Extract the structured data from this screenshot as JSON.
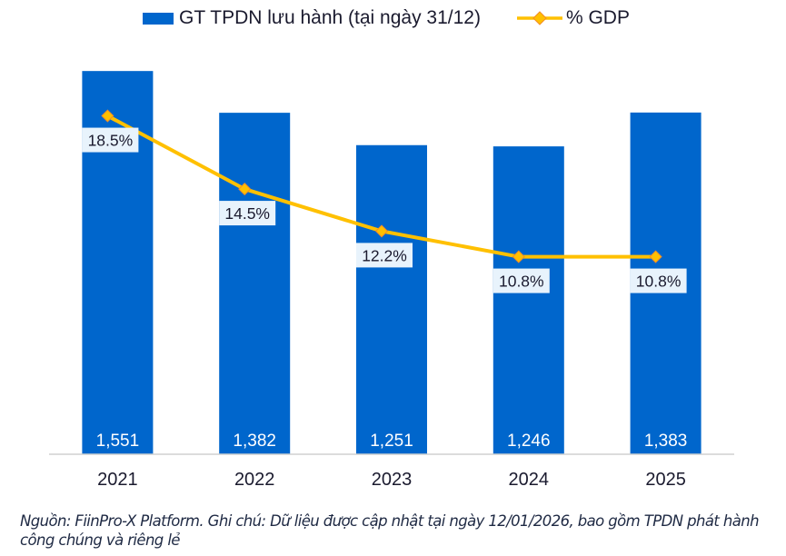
{
  "chart_data": {
    "type": "bar",
    "categories": [
      "2021",
      "2022",
      "2023",
      "2024",
      "2025"
    ],
    "series": [
      {
        "name": "GT TPDN lưu hành (tại ngày 31/12)",
        "kind": "bar",
        "values": [
          1551,
          1382,
          1251,
          1246,
          1383
        ],
        "labels": [
          "1,551",
          "1,382",
          "1,251",
          "1,246",
          "1,383"
        ],
        "color": "#0066CC"
      },
      {
        "name": "% GDP",
        "kind": "line",
        "values": [
          18.5,
          14.5,
          12.2,
          10.8,
          10.8
        ],
        "labels": [
          "18.5%",
          "14.5%",
          "12.2%",
          "10.8%",
          "10.8%"
        ],
        "color": "#FFC000",
        "marker_color": "#FFC000",
        "marker_edge": "#F28C28"
      }
    ],
    "title": "",
    "xlabel": "",
    "ylabel": "",
    "ylim": [
      0,
      1600
    ],
    "y2lim": [
      0,
      22
    ],
    "grid": false,
    "legend_position": "top-center",
    "label_box_color": "#E8F3FC"
  },
  "legend": {
    "bar_label": "GT TPDN lưu hành (tại ngày 31/12)",
    "line_label": "% GDP"
  },
  "footnote": "Nguồn: FiinPro-X Platform. Ghi chú: Dữ liệu được cập nhật tại ngày 12/01/2026, bao gồm TPDN phát hành công chúng và riêng lẻ"
}
